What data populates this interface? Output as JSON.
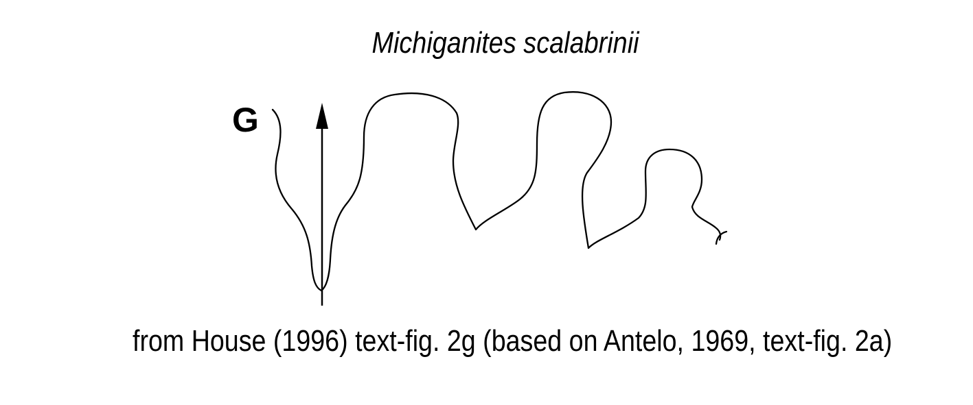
{
  "figure": {
    "title": "Michiganites scalabrinii",
    "label": "G",
    "caption": "from House (1996) text-fig. 2g (based on Antelo, 1969, text-fig. 2a)"
  }
}
